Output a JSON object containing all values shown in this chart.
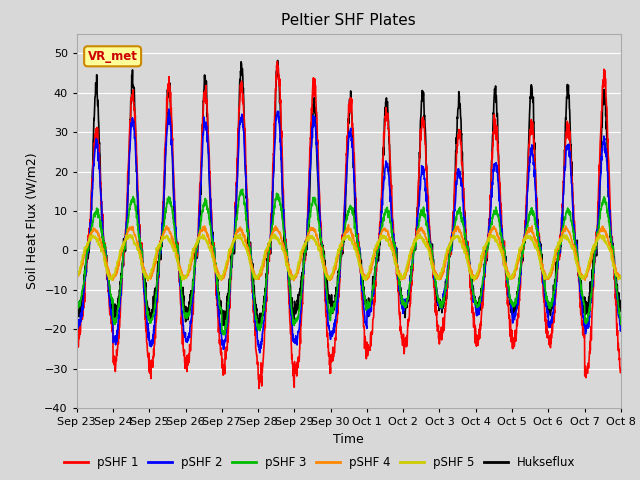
{
  "title": "Peltier SHF Plates",
  "xlabel": "Time",
  "ylabel": "Soil Heat Flux (W/m2)",
  "ylim": [
    -40,
    55
  ],
  "yticks": [
    -40,
    -30,
    -20,
    -10,
    0,
    10,
    20,
    30,
    40,
    50
  ],
  "fig_bg": "#d8d8d8",
  "plot_bg": "#d8d8d8",
  "colors": {
    "pSHF1": "#ff0000",
    "pSHF2": "#0000ff",
    "pSHF3": "#00bb00",
    "pSHF4": "#ff8800",
    "pSHF5": "#cccc00",
    "Hukseflux": "#000000"
  },
  "legend_labels": [
    "pSHF 1",
    "pSHF 2",
    "pSHF 3",
    "pSHF 4",
    "pSHF 5",
    "Hukseflux"
  ],
  "annotation_text": "VR_met",
  "annotation_color": "#cc0000",
  "annotation_bg": "#ffff99",
  "annotation_border": "#cc8800",
  "n_days": 15,
  "xtick_labels": [
    "Sep 23",
    "Sep 24",
    "Sep 25",
    "Sep 26",
    "Sep 27",
    "Sep 28",
    "Sep 29",
    "Sep 30",
    "Oct 1",
    "Oct 2",
    "Oct 3",
    "Oct 4",
    "Oct 5",
    "Oct 6",
    "Oct 7",
    "Oct 8"
  ],
  "grid_color": "#ffffff",
  "linewidth": 1.2
}
